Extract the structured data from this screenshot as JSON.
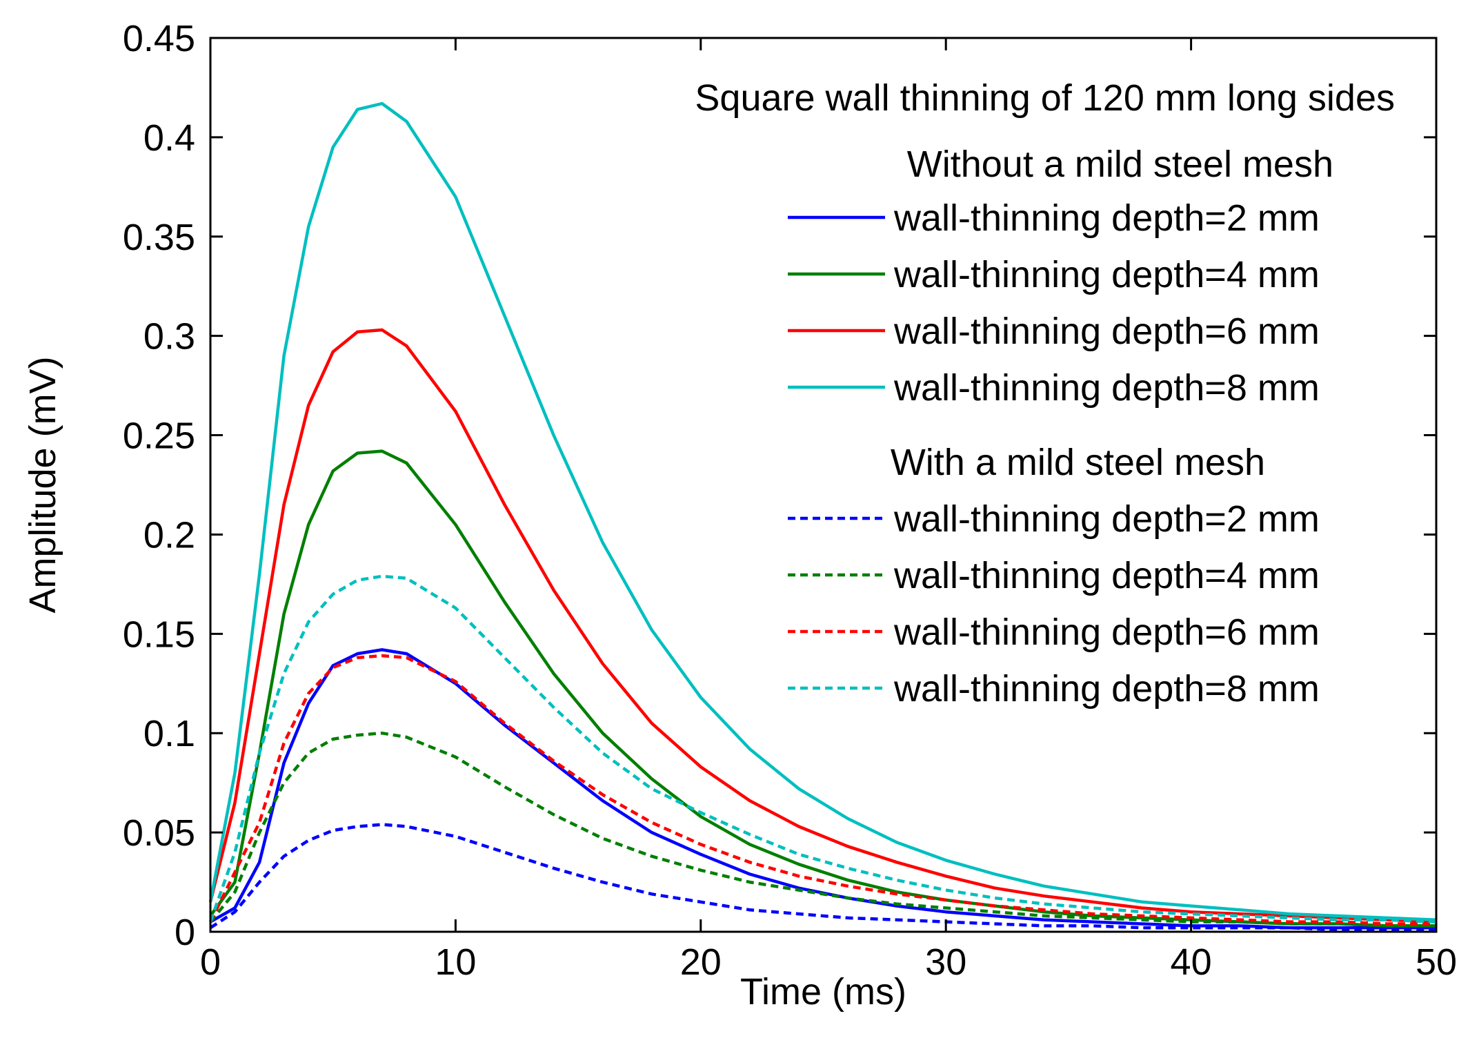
{
  "chart_data": {
    "type": "line",
    "title": "",
    "xlabel": "Time (ms)",
    "ylabel": "Amplitude (mV)",
    "xlim": [
      0,
      50
    ],
    "ylim": [
      0,
      0.45
    ],
    "xticks": [
      0,
      10,
      20,
      30,
      40,
      50
    ],
    "yticks": [
      0,
      0.05,
      0.1,
      0.15,
      0.2,
      0.25,
      0.3,
      0.35,
      0.4,
      0.45
    ],
    "xtick_labels": [
      "0",
      "10",
      "20",
      "30",
      "40",
      "50"
    ],
    "ytick_labels": [
      "0",
      "0.05",
      "0.1",
      "0.15",
      "0.2",
      "0.25",
      "0.3",
      "0.35",
      "0.4",
      "0.45"
    ],
    "grid": false,
    "legend": {
      "placement": "top-right",
      "header": "Square wall thinning of 120 mm long sides",
      "groups": [
        {
          "title": "Without a mild steel mesh",
          "entries": [
            {
              "label": "wall-thinning depth=2 mm",
              "color": "#0000ff",
              "style": "solid"
            },
            {
              "label": "wall-thinning depth=4 mm",
              "color": "#007f00",
              "style": "solid"
            },
            {
              "label": "wall-thinning depth=6 mm",
              "color": "#ff0000",
              "style": "solid"
            },
            {
              "label": "wall-thinning depth=8 mm",
              "color": "#00bfbf",
              "style": "solid"
            }
          ]
        },
        {
          "title": "With a mild steel mesh",
          "entries": [
            {
              "label": "wall-thinning depth=2 mm",
              "color": "#0000ff",
              "style": "dashed"
            },
            {
              "label": "wall-thinning depth=4 mm",
              "color": "#007f00",
              "style": "dashed"
            },
            {
              "label": "wall-thinning depth=6 mm",
              "color": "#ff0000",
              "style": "dashed"
            },
            {
              "label": "wall-thinning depth=8 mm",
              "color": "#00bfbf",
              "style": "dashed"
            }
          ]
        }
      ]
    },
    "series": [
      {
        "name": "Without mesh, depth=2 mm",
        "color": "#0000ff",
        "style": "solid",
        "x": [
          0,
          1,
          2,
          3,
          4,
          5,
          6,
          7,
          8,
          10,
          12,
          14,
          16,
          18,
          20,
          22,
          24,
          26,
          28,
          30,
          32,
          34,
          36,
          38,
          40,
          42,
          44,
          46,
          48,
          50
        ],
        "y": [
          0.005,
          0.012,
          0.035,
          0.085,
          0.115,
          0.134,
          0.14,
          0.142,
          0.14,
          0.125,
          0.104,
          0.085,
          0.066,
          0.05,
          0.039,
          0.029,
          0.022,
          0.017,
          0.013,
          0.01,
          0.008,
          0.006,
          0.005,
          0.004,
          0.003,
          0.003,
          0.002,
          0.002,
          0.002,
          0.002
        ]
      },
      {
        "name": "Without mesh, depth=4 mm",
        "color": "#007f00",
        "style": "solid",
        "x": [
          0,
          1,
          2,
          3,
          4,
          5,
          6,
          7,
          8,
          10,
          12,
          14,
          16,
          18,
          20,
          22,
          24,
          26,
          28,
          30,
          32,
          34,
          36,
          38,
          40,
          42,
          44,
          46,
          48,
          50
        ],
        "y": [
          0.008,
          0.025,
          0.09,
          0.16,
          0.205,
          0.232,
          0.241,
          0.242,
          0.236,
          0.205,
          0.166,
          0.13,
          0.1,
          0.077,
          0.058,
          0.044,
          0.034,
          0.026,
          0.02,
          0.016,
          0.013,
          0.01,
          0.008,
          0.007,
          0.006,
          0.005,
          0.004,
          0.004,
          0.003,
          0.003
        ]
      },
      {
        "name": "Without mesh, depth=6 mm",
        "color": "#ff0000",
        "style": "solid",
        "x": [
          0,
          1,
          2,
          3,
          4,
          5,
          6,
          7,
          8,
          10,
          12,
          14,
          16,
          18,
          20,
          22,
          24,
          26,
          28,
          30,
          32,
          34,
          36,
          38,
          40,
          42,
          44,
          46,
          48,
          50
        ],
        "y": [
          0.015,
          0.065,
          0.14,
          0.215,
          0.265,
          0.292,
          0.302,
          0.303,
          0.295,
          0.262,
          0.215,
          0.172,
          0.135,
          0.105,
          0.083,
          0.066,
          0.053,
          0.043,
          0.035,
          0.028,
          0.022,
          0.018,
          0.015,
          0.012,
          0.01,
          0.009,
          0.008,
          0.007,
          0.006,
          0.005
        ]
      },
      {
        "name": "Without mesh, depth=8 mm",
        "color": "#00bfbf",
        "style": "solid",
        "x": [
          0,
          1,
          2,
          3,
          4,
          5,
          6,
          7,
          8,
          10,
          12,
          14,
          16,
          18,
          20,
          22,
          24,
          26,
          28,
          30,
          32,
          34,
          36,
          38,
          40,
          42,
          44,
          46,
          48,
          50
        ],
        "y": [
          0.015,
          0.08,
          0.18,
          0.29,
          0.355,
          0.395,
          0.414,
          0.417,
          0.408,
          0.37,
          0.31,
          0.25,
          0.196,
          0.152,
          0.118,
          0.092,
          0.072,
          0.057,
          0.045,
          0.036,
          0.029,
          0.023,
          0.019,
          0.015,
          0.013,
          0.011,
          0.009,
          0.008,
          0.007,
          0.006
        ]
      },
      {
        "name": "With mesh, depth=2 mm",
        "color": "#0000ff",
        "style": "dashed",
        "x": [
          0,
          1,
          2,
          3,
          4,
          5,
          6,
          7,
          8,
          10,
          12,
          14,
          16,
          18,
          20,
          22,
          24,
          26,
          28,
          30,
          32,
          34,
          36,
          38,
          40,
          42,
          44,
          46,
          48,
          50
        ],
        "y": [
          0.002,
          0.01,
          0.025,
          0.038,
          0.046,
          0.051,
          0.053,
          0.054,
          0.053,
          0.048,
          0.04,
          0.032,
          0.025,
          0.019,
          0.015,
          0.011,
          0.009,
          0.007,
          0.006,
          0.005,
          0.004,
          0.003,
          0.003,
          0.002,
          0.002,
          0.002,
          0.002,
          0.001,
          0.001,
          0.001
        ]
      },
      {
        "name": "With mesh, depth=4 mm",
        "color": "#007f00",
        "style": "dashed",
        "x": [
          0,
          1,
          2,
          3,
          4,
          5,
          6,
          7,
          8,
          10,
          12,
          14,
          16,
          18,
          20,
          22,
          24,
          26,
          28,
          30,
          32,
          34,
          36,
          38,
          40,
          42,
          44,
          46,
          48,
          50
        ],
        "y": [
          0.005,
          0.02,
          0.05,
          0.075,
          0.09,
          0.097,
          0.099,
          0.1,
          0.098,
          0.088,
          0.073,
          0.059,
          0.047,
          0.038,
          0.031,
          0.025,
          0.021,
          0.017,
          0.014,
          0.012,
          0.01,
          0.008,
          0.007,
          0.006,
          0.005,
          0.005,
          0.004,
          0.004,
          0.003,
          0.003
        ]
      },
      {
        "name": "With mesh, depth=6 mm",
        "color": "#ff0000",
        "style": "dashed",
        "x": [
          0,
          1,
          2,
          3,
          4,
          5,
          6,
          7,
          8,
          10,
          12,
          14,
          16,
          18,
          20,
          22,
          24,
          26,
          28,
          30,
          32,
          34,
          36,
          38,
          40,
          42,
          44,
          46,
          48,
          50
        ],
        "y": [
          0.005,
          0.03,
          0.055,
          0.095,
          0.12,
          0.133,
          0.138,
          0.139,
          0.138,
          0.126,
          0.105,
          0.086,
          0.069,
          0.055,
          0.044,
          0.035,
          0.028,
          0.023,
          0.019,
          0.016,
          0.013,
          0.011,
          0.009,
          0.008,
          0.007,
          0.006,
          0.005,
          0.005,
          0.004,
          0.004
        ]
      },
      {
        "name": "With mesh, depth=8 mm",
        "color": "#00bfbf",
        "style": "dashed",
        "x": [
          0,
          1,
          2,
          3,
          4,
          5,
          6,
          7,
          8,
          10,
          12,
          14,
          16,
          18,
          20,
          22,
          24,
          26,
          28,
          30,
          32,
          34,
          36,
          38,
          40,
          42,
          44,
          46,
          48,
          50
        ],
        "y": [
          0.005,
          0.04,
          0.09,
          0.13,
          0.156,
          0.17,
          0.177,
          0.179,
          0.178,
          0.163,
          0.138,
          0.113,
          0.09,
          0.072,
          0.06,
          0.049,
          0.039,
          0.032,
          0.026,
          0.021,
          0.017,
          0.014,
          0.012,
          0.01,
          0.009,
          0.008,
          0.007,
          0.006,
          0.006,
          0.005
        ]
      }
    ]
  }
}
